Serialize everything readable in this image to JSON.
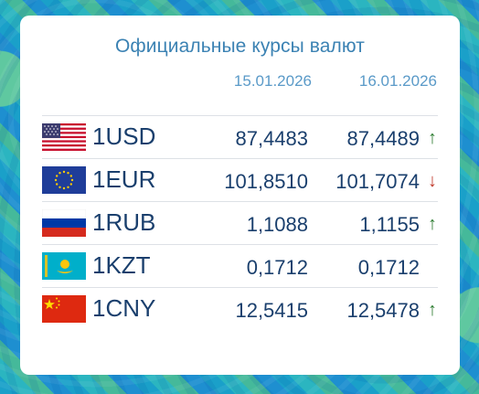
{
  "widget": {
    "title": "Официальные курсы валют",
    "date_prev": "15.01.2026",
    "date_curr": "16.01.2026"
  },
  "rates": [
    {
      "code": "1USD",
      "flag": "us-flag-icon",
      "prev": "87,4483",
      "curr": "87,4489",
      "trend": "↑",
      "trend_dir": "up",
      "trend_color": "#2e7d32"
    },
    {
      "code": "1EUR",
      "flag": "eu-flag-icon",
      "prev": "101,8510",
      "curr": "101,7074",
      "trend": "↓",
      "trend_dir": "down",
      "trend_color": "#c0392b"
    },
    {
      "code": "1RUB",
      "flag": "ru-flag-icon",
      "prev": "1,1088",
      "curr": "1,1155",
      "trend": "↑",
      "trend_dir": "up",
      "trend_color": "#2e7d32"
    },
    {
      "code": "1KZT",
      "flag": "kz-flag-icon",
      "prev": "0,1712",
      "curr": "0,1712",
      "trend": "",
      "trend_dir": "none",
      "trend_color": ""
    },
    {
      "code": "1CNY",
      "flag": "cn-flag-icon",
      "prev": "12,5415",
      "curr": "12,5478",
      "trend": "↑",
      "trend_dir": "up",
      "trend_color": "#2e7d32"
    }
  ]
}
